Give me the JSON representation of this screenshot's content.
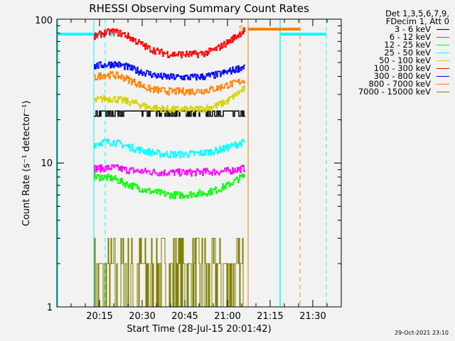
{
  "chart_data": {
    "type": "line",
    "title": "RHESSI Observing Summary Count Rates",
    "xlabel": "Start Time (28-Jul-15 20:01:42)",
    "ylabel": "Count Rate (s⁻¹ detector⁻¹)",
    "xlim": [
      "20:00",
      "21:40"
    ],
    "ylim": [
      1,
      100
    ],
    "yscale": "log",
    "x_tick_labels": [
      "20:15",
      "20:30",
      "20:45",
      "21:00",
      "21:15",
      "21:30"
    ],
    "y_tick_labels": [
      "1",
      "10",
      "100"
    ],
    "legend_header": [
      "Det 1,3,5,6,7,9,",
      "FDecim 1, Att 0"
    ],
    "legend_position": "right",
    "x_minutes_after_2000": [
      13,
      16,
      20,
      24,
      28,
      32,
      36,
      40,
      44,
      48,
      52,
      56,
      60,
      63,
      66
    ],
    "series": [
      {
        "name": "3 - 6 keV",
        "color": "#000000",
        "values": [
          23,
          23,
          23,
          23,
          23,
          23,
          23,
          23,
          23,
          23,
          23,
          23,
          23,
          23,
          23
        ]
      },
      {
        "name": "6 - 12 keV",
        "color": "#ff00ff",
        "values": [
          9.2,
          9.2,
          9.3,
          9.0,
          8.8,
          8.7,
          8.6,
          8.6,
          8.6,
          8.6,
          8.7,
          8.7,
          8.8,
          9.0,
          9.2
        ]
      },
      {
        "name": "12 - 25 keV",
        "color": "#00ff00",
        "values": [
          8.0,
          8.0,
          7.8,
          7.2,
          6.8,
          6.4,
          6.2,
          6.0,
          6.0,
          6.1,
          6.2,
          6.5,
          7.0,
          7.6,
          8.2
        ]
      },
      {
        "name": "25 - 50 keV",
        "color": "#00ffff",
        "values": [
          13.5,
          14,
          14,
          13.2,
          12.5,
          12,
          11.6,
          11.5,
          11.5,
          11.6,
          11.8,
          12.2,
          12.8,
          13.5,
          14
        ]
      },
      {
        "name": "50 - 100 keV",
        "color": "#d4d400",
        "values": [
          27,
          28,
          28,
          27,
          26,
          24.5,
          24,
          23.5,
          23.5,
          23.5,
          24,
          25,
          27,
          30,
          33
        ]
      },
      {
        "name": "100 - 300 keV",
        "color": "#ff0000",
        "values": [
          75,
          80,
          82,
          78,
          70,
          63,
          59,
          57,
          57,
          57,
          58,
          62,
          69,
          76,
          84
        ]
      },
      {
        "name": "300 - 800 keV",
        "color": "#0000ff",
        "values": [
          47,
          48,
          49,
          47,
          44,
          42,
          40,
          39.5,
          39.5,
          39.5,
          40,
          41,
          43,
          45,
          47
        ]
      },
      {
        "name": "800 - 7000 keV",
        "color": "#ff8000",
        "values": [
          39,
          41,
          41,
          39,
          36,
          33,
          32,
          31.5,
          31.5,
          31.5,
          32,
          33,
          35,
          36,
          38
        ]
      },
      {
        "name": "7000 - 15000 keV",
        "color": "#808000",
        "values": [
          2,
          2,
          2.5,
          1.5,
          1.5,
          2,
          2,
          1.5,
          2,
          2,
          1.5,
          2,
          2,
          2,
          1.5
        ]
      }
    ],
    "annotations": [
      {
        "label": "S",
        "color": "#ff8000"
      },
      {
        "label": "N",
        "color": "#00ffff"
      }
    ],
    "markers": {
      "saa_bar_color": "#ff8000",
      "night_bar_color": "#00ffff"
    }
  },
  "footer": {
    "timestamp": "29-Oct-2021 23:10"
  }
}
